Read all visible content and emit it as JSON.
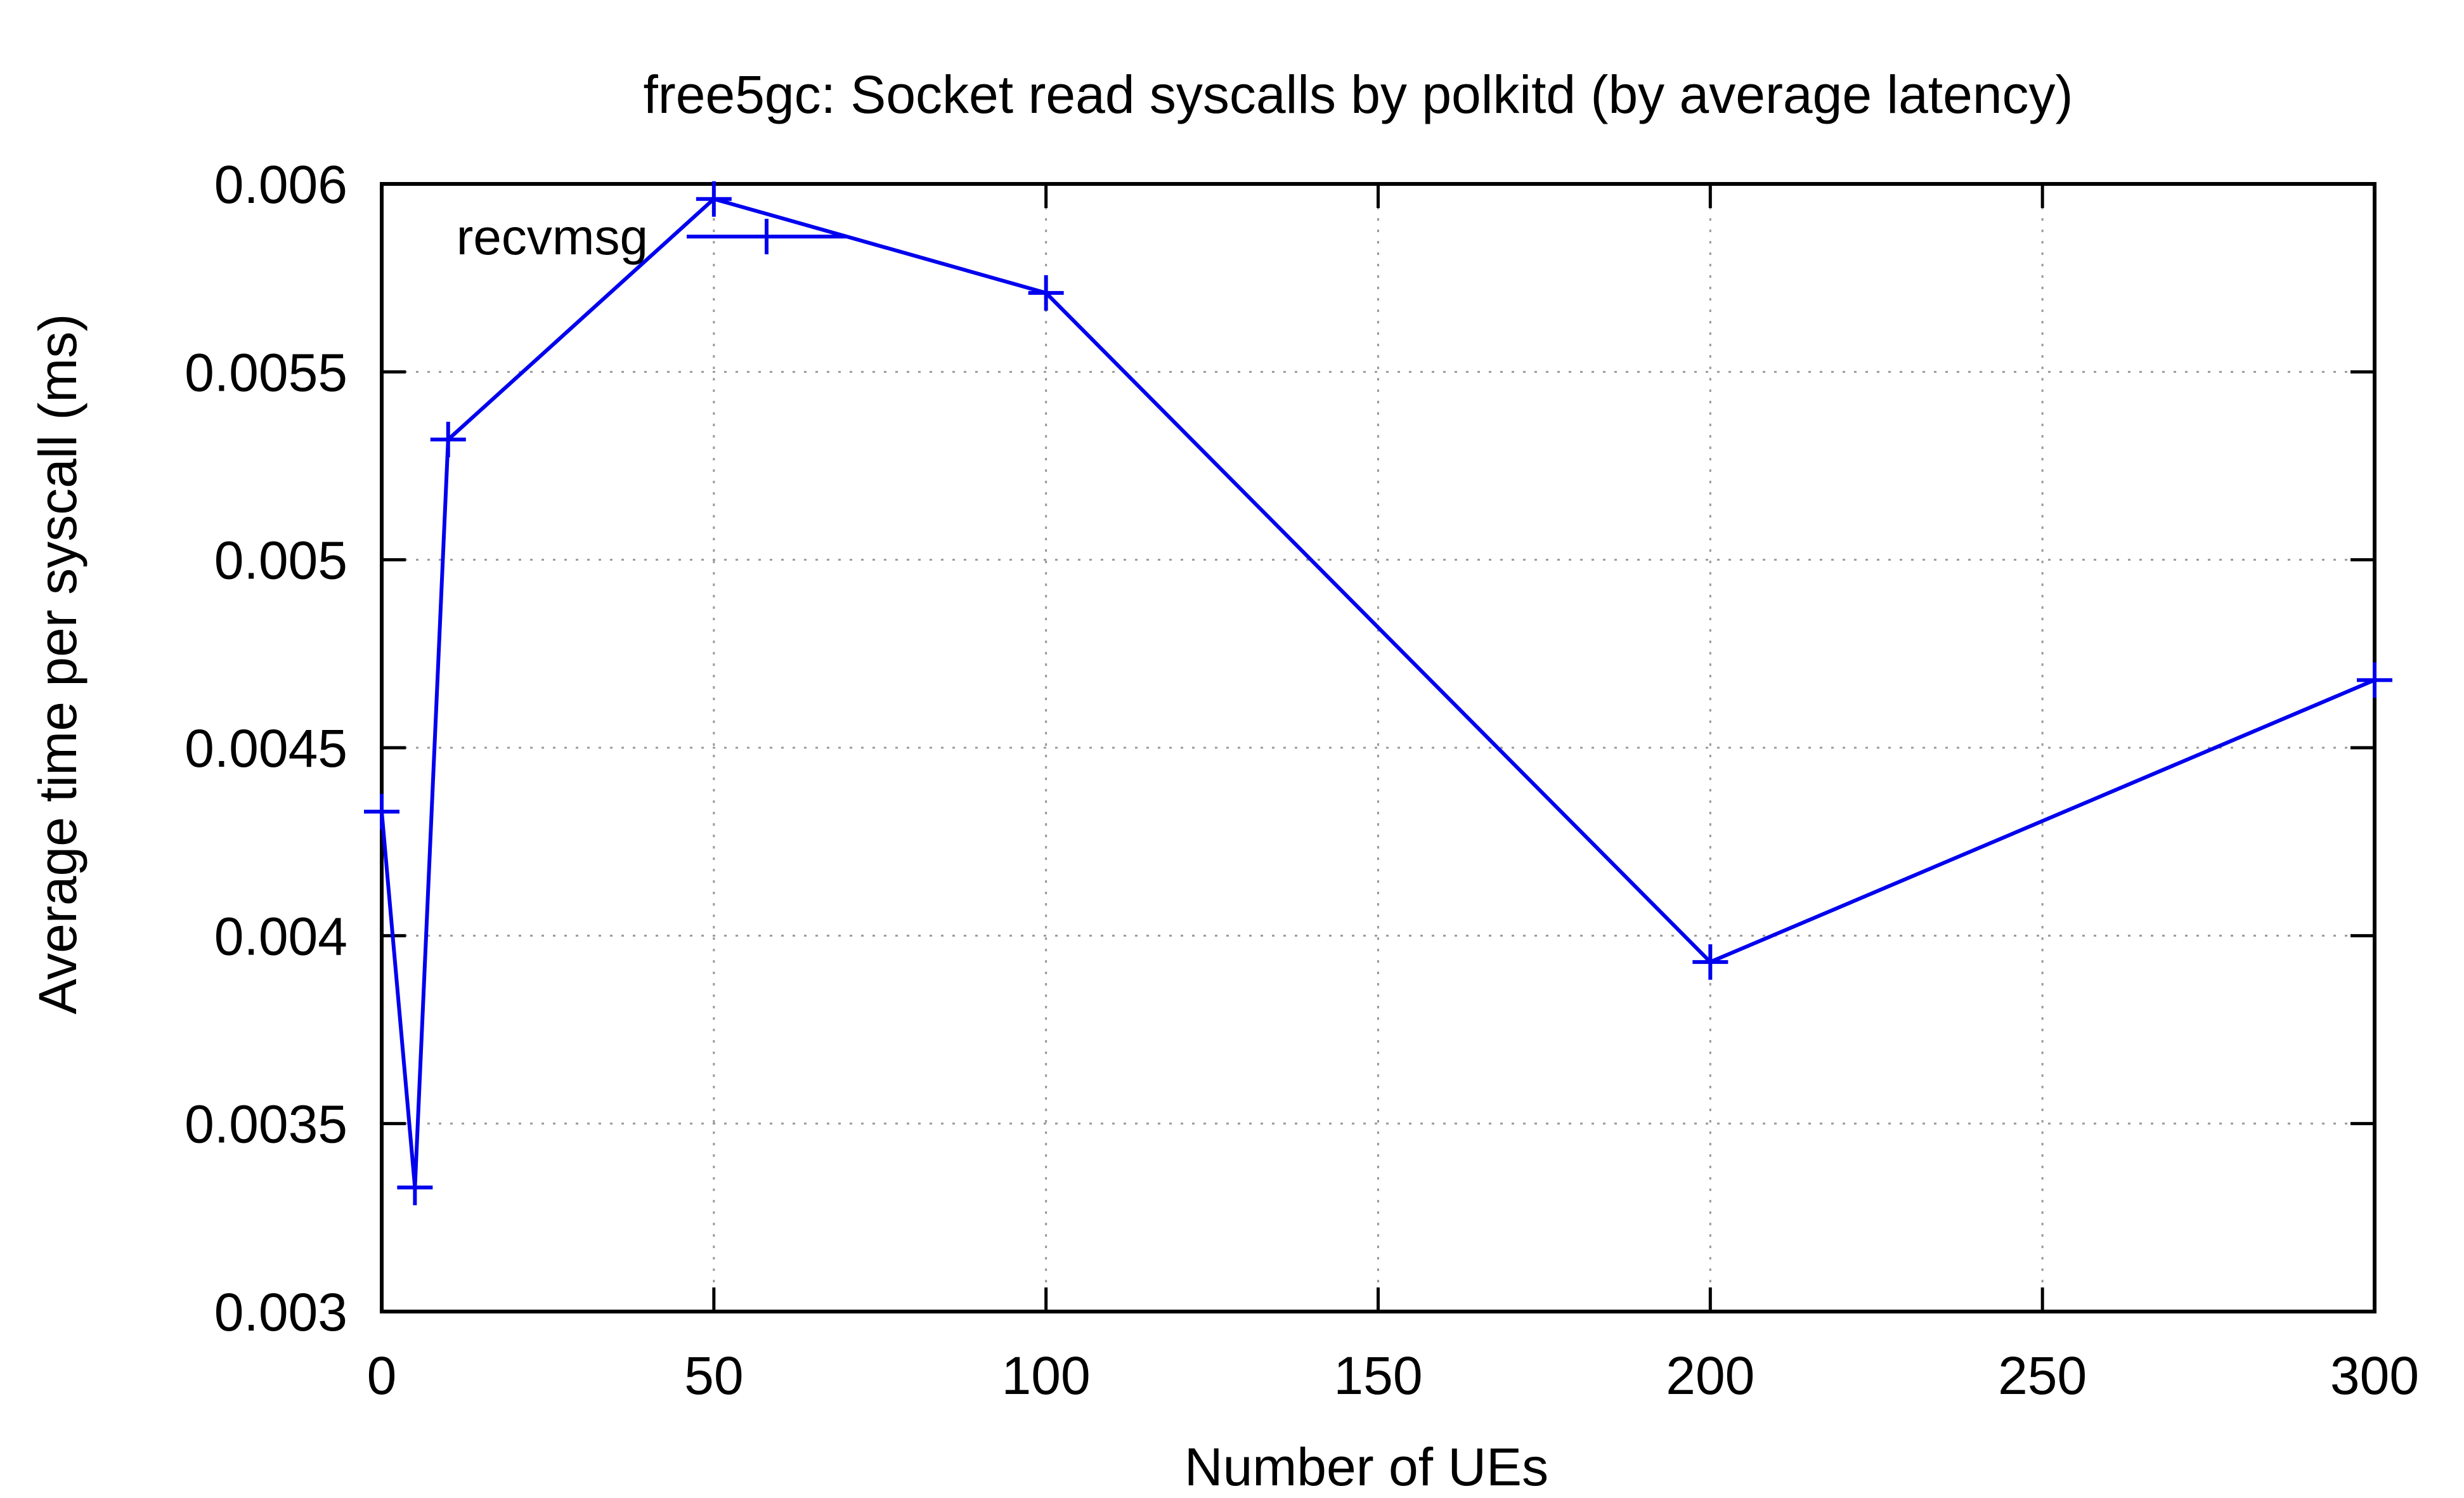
{
  "chart_data": {
    "type": "line",
    "title": "free5gc: Socket read syscalls by polkitd (by average latency)",
    "xlabel": "Number of UEs",
    "ylabel": "Average time per syscall (ms)",
    "xlim": [
      0,
      300
    ],
    "ylim": [
      0.003,
      0.006
    ],
    "x_ticks": [
      0,
      50,
      100,
      150,
      200,
      250,
      300
    ],
    "x_tick_labels": [
      "0",
      "50",
      "100",
      "150",
      "200",
      "250",
      "300"
    ],
    "y_ticks": [
      0.003,
      0.0035,
      0.004,
      0.0045,
      0.005,
      0.0055,
      0.006
    ],
    "y_tick_labels": [
      "0.003",
      "0.0035",
      "0.004",
      "0.0045",
      "0.005",
      "0.0055",
      "0.006"
    ],
    "grid": true,
    "legend_position": "top-left",
    "series": [
      {
        "name": "recvmsg",
        "color": "#0000ee",
        "marker": "plus",
        "x": [
          0,
          5,
          10,
          50,
          100,
          200,
          300
        ],
        "y": [
          0.00433,
          0.00333,
          0.00532,
          0.00596,
          0.00571,
          0.00393,
          0.00468
        ]
      }
    ]
  }
}
